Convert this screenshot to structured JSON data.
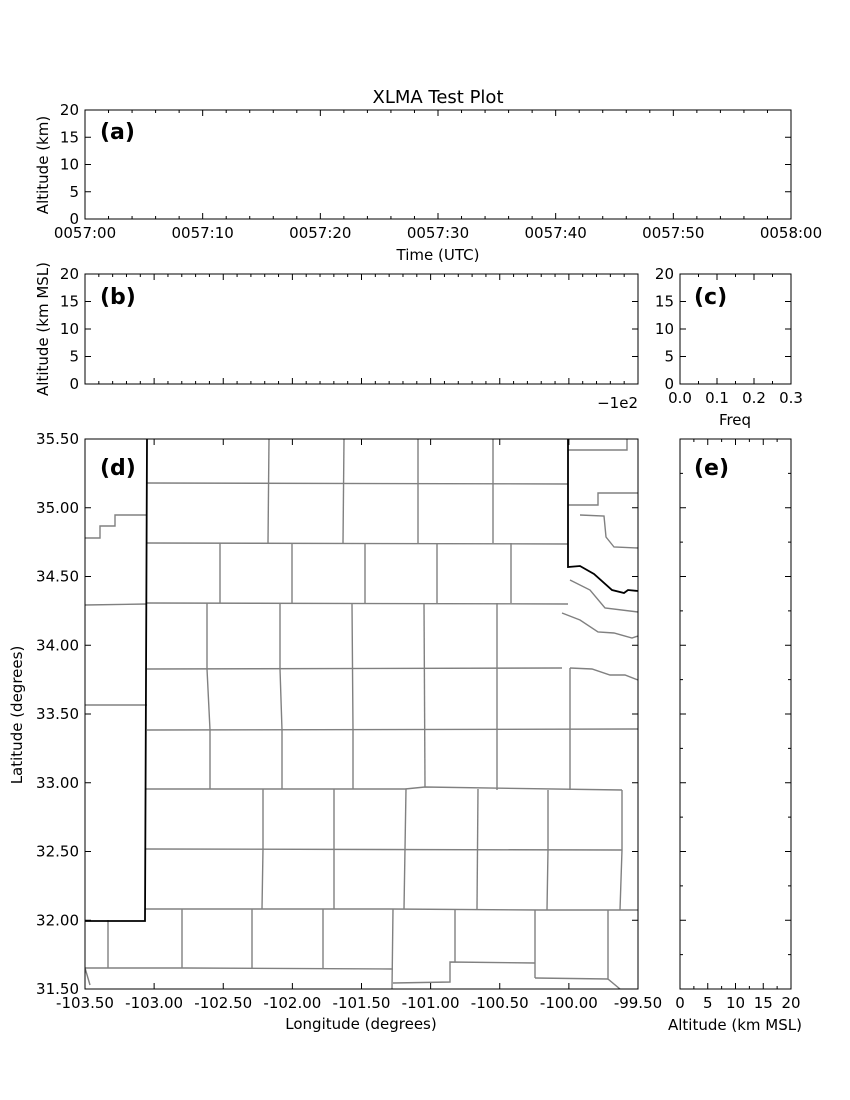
{
  "figure": {
    "title": "XLMA Test Plot"
  },
  "chart_data": [
    {
      "id": "a",
      "type": "scatter",
      "panel_label": "(a)",
      "xlabel": "Time (UTC)",
      "ylabel": "Altitude (km)",
      "xticks": [
        "0057:00",
        "0057:10",
        "0057:20",
        "0057:30",
        "0057:40",
        "0057:50",
        "0058:00"
      ],
      "ylim": [
        0,
        20
      ],
      "yticks": [
        0,
        5,
        10,
        15,
        20
      ],
      "points": []
    },
    {
      "id": "b",
      "type": "scatter",
      "panel_label": "(b)",
      "xlabel": "",
      "ylabel": "Altitude (km MSL)",
      "ylim": [
        0,
        20
      ],
      "yticks": [
        0,
        5,
        10,
        15,
        20
      ],
      "offset_text": "−1e2",
      "points": []
    },
    {
      "id": "c",
      "type": "bar",
      "panel_label": "(c)",
      "xlabel": "Freq",
      "xlim": [
        0.0,
        0.3
      ],
      "xticks": [
        "0.0",
        "0.1",
        "0.2",
        "0.3"
      ],
      "ylim": [
        0,
        20
      ],
      "yticks": [
        0,
        5,
        10,
        15,
        20
      ],
      "values": []
    },
    {
      "id": "d",
      "type": "scatter",
      "panel_label": "(d)",
      "xlabel": "Longitude (degrees)",
      "ylabel": "Latitude (degrees)",
      "xlim": [
        -103.5,
        -99.5
      ],
      "ylim": [
        31.5,
        35.5
      ],
      "xticks": [
        "-103.50",
        "-103.00",
        "-102.50",
        "-102.00",
        "-101.50",
        "-101.00",
        "-100.50",
        "-100.00",
        "-99.50"
      ],
      "yticks": [
        "31.50",
        "32.00",
        "32.50",
        "33.00",
        "33.50",
        "34.00",
        "34.50",
        "35.00",
        "35.50"
      ],
      "points": []
    },
    {
      "id": "e",
      "type": "scatter",
      "panel_label": "(e)",
      "xlabel": "Altitude (km MSL)",
      "xlim": [
        0,
        20
      ],
      "xticks": [
        "0",
        "5",
        "10",
        "15",
        "20"
      ],
      "ylim": [
        31.5,
        35.5
      ],
      "points": []
    }
  ]
}
